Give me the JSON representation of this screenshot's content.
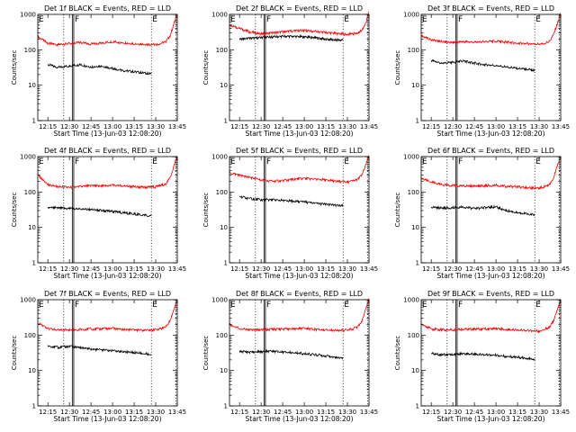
{
  "colors": {
    "events": "#000000",
    "lld": "#ff0000",
    "background": "#ffffff"
  },
  "chart_data": [
    {
      "type": "line",
      "title": "Det 1f BLACK = Events, RED = LLD",
      "xlabel": "Start Time (13-Jun-03 12:08:20)",
      "ylabel": "Counts/sec",
      "ylog": true,
      "ylim": [
        1,
        1000
      ],
      "x_ticks": [
        "12:15",
        "12:30",
        "12:45",
        "13:00",
        "13:15",
        "13:30",
        "13:45"
      ],
      "y_ticks": [
        "1",
        "10",
        "100",
        "1000"
      ],
      "dotted_markers": [
        "12:26",
        "13:27",
        "13:44"
      ],
      "solid_markers": [
        "12:32",
        "12:33"
      ],
      "flags": [
        {
          "label": "E",
          "at": "12:08"
        },
        {
          "label": "F",
          "at": "12:33"
        },
        {
          "label": "E",
          "at": "13:27"
        }
      ],
      "series": [
        {
          "name": "LLD",
          "color": "#ff0000",
          "x": [
            "12:08",
            "12:15",
            "12:22",
            "12:30",
            "12:37",
            "12:45",
            "12:52",
            "13:00",
            "13:07",
            "13:15",
            "13:22",
            "13:30",
            "13:33",
            "13:37",
            "13:40",
            "13:43",
            "13:45"
          ],
          "y": [
            240,
            150,
            140,
            150,
            160,
            145,
            155,
            170,
            160,
            150,
            145,
            140,
            150,
            170,
            250,
            600,
            1000
          ]
        },
        {
          "name": "Events",
          "color": "#000000",
          "x": [
            "12:15",
            "12:22",
            "12:30",
            "12:37",
            "12:45",
            "12:52",
            "13:00",
            "13:07",
            "13:15",
            "13:22",
            "13:27"
          ],
          "y": [
            38,
            32,
            35,
            38,
            33,
            35,
            30,
            26,
            24,
            22,
            21
          ]
        }
      ]
    },
    {
      "type": "line",
      "title": "Det 2f BLACK = Events, RED = LLD",
      "xlabel": "Start Time (13-Jun-03 12:08:20)",
      "ylabel": "Counts/sec",
      "ylog": true,
      "ylim": [
        1,
        1000
      ],
      "x_ticks": [
        "12:15",
        "12:30",
        "12:45",
        "13:00",
        "13:15",
        "13:30",
        "13:45"
      ],
      "y_ticks": [
        "1",
        "10",
        "100",
        "1000"
      ],
      "dotted_markers": [
        "12:26",
        "13:27",
        "13:44"
      ],
      "solid_markers": [
        "12:32",
        "12:33"
      ],
      "flags": [
        {
          "label": "E",
          "at": "12:08"
        },
        {
          "label": "F",
          "at": "12:33"
        },
        {
          "label": "E",
          "at": "13:27"
        }
      ],
      "series": [
        {
          "name": "LLD",
          "color": "#ff0000",
          "x": [
            "12:08",
            "12:15",
            "12:22",
            "12:30",
            "12:37",
            "12:45",
            "12:52",
            "13:00",
            "13:07",
            "13:15",
            "13:22",
            "13:30",
            "13:33",
            "13:37",
            "13:40",
            "13:43",
            "13:45"
          ],
          "y": [
            500,
            400,
            320,
            280,
            300,
            320,
            340,
            350,
            330,
            310,
            290,
            270,
            280,
            300,
            350,
            600,
            1200
          ]
        },
        {
          "name": "Events",
          "color": "#000000",
          "x": [
            "12:15",
            "12:22",
            "12:30",
            "12:37",
            "12:45",
            "12:52",
            "13:00",
            "13:07",
            "13:15",
            "13:22",
            "13:27"
          ],
          "y": [
            200,
            210,
            220,
            230,
            240,
            240,
            230,
            220,
            200,
            190,
            190
          ]
        }
      ]
    },
    {
      "type": "line",
      "title": "Det 3f BLACK = Events, RED = LLD",
      "xlabel": "Start Time (13-Jun-03 12:08:20)",
      "ylabel": "Counts/sec",
      "ylog": true,
      "ylim": [
        1,
        1000
      ],
      "x_ticks": [
        "12:15",
        "12:30",
        "12:45",
        "13:00",
        "13:15",
        "13:30",
        "13:45"
      ],
      "y_ticks": [
        "1",
        "10",
        "100",
        "1000"
      ],
      "dotted_markers": [
        "12:26",
        "13:27",
        "13:44"
      ],
      "solid_markers": [
        "12:32",
        "12:33"
      ],
      "flags": [
        {
          "label": "E",
          "at": "12:08"
        },
        {
          "label": "F",
          "at": "12:33"
        },
        {
          "label": "E",
          "at": "13:27"
        }
      ],
      "series": [
        {
          "name": "LLD",
          "color": "#ff0000",
          "x": [
            "12:08",
            "12:15",
            "12:22",
            "12:30",
            "12:37",
            "12:45",
            "12:52",
            "13:00",
            "13:07",
            "13:15",
            "13:22",
            "13:30",
            "13:33",
            "13:37",
            "13:40",
            "13:43",
            "13:45"
          ],
          "y": [
            250,
            190,
            170,
            160,
            170,
            165,
            170,
            175,
            165,
            155,
            150,
            145,
            150,
            170,
            260,
            600,
            1100
          ]
        },
        {
          "name": "Events",
          "color": "#000000",
          "x": [
            "12:15",
            "12:22",
            "12:30",
            "12:37",
            "12:45",
            "12:52",
            "13:00",
            "13:07",
            "13:15",
            "13:22",
            "13:27"
          ],
          "y": [
            50,
            42,
            44,
            48,
            42,
            38,
            36,
            33,
            30,
            28,
            26
          ]
        }
      ]
    },
    {
      "type": "line",
      "title": "Det 4f BLACK = Events, RED = LLD",
      "xlabel": "Start Time (13-Jun-03 12:08:20)",
      "ylabel": "Counts/sec",
      "ylog": true,
      "ylim": [
        1,
        1000
      ],
      "x_ticks": [
        "12:15",
        "12:30",
        "12:45",
        "13:00",
        "13:15",
        "13:30",
        "13:45"
      ],
      "y_ticks": [
        "1",
        "10",
        "100",
        "1000"
      ],
      "dotted_markers": [
        "12:26",
        "13:27",
        "13:44"
      ],
      "solid_markers": [
        "12:32",
        "12:33"
      ],
      "flags": [
        {
          "label": "E",
          "at": "12:08"
        },
        {
          "label": "F",
          "at": "12:33"
        },
        {
          "label": "E",
          "at": "13:27"
        }
      ],
      "series": [
        {
          "name": "LLD",
          "color": "#ff0000",
          "x": [
            "12:08",
            "12:15",
            "12:22",
            "12:30",
            "12:37",
            "12:45",
            "12:52",
            "13:00",
            "13:07",
            "13:15",
            "13:22",
            "13:30",
            "13:33",
            "13:37",
            "13:40",
            "13:43",
            "13:45"
          ],
          "y": [
            300,
            160,
            140,
            135,
            140,
            150,
            145,
            155,
            150,
            140,
            135,
            140,
            150,
            170,
            250,
            600,
            1000
          ]
        },
        {
          "name": "Events",
          "color": "#000000",
          "x": [
            "12:15",
            "12:22",
            "12:30",
            "12:37",
            "12:45",
            "12:52",
            "13:00",
            "13:07",
            "13:15",
            "13:22",
            "13:27"
          ],
          "y": [
            36,
            35,
            34,
            33,
            32,
            30,
            28,
            26,
            24,
            22,
            21
          ]
        }
      ]
    },
    {
      "type": "line",
      "title": "Det 5f BLACK = Events, RED = LLD",
      "xlabel": "Start Time (13-Jun-03 12:08:20)",
      "ylabel": "Counts/sec",
      "ylog": true,
      "ylim": [
        1,
        1000
      ],
      "x_ticks": [
        "12:15",
        "12:30",
        "12:45",
        "13:00",
        "13:15",
        "13:30",
        "13:45"
      ],
      "y_ticks": [
        "1",
        "10",
        "100",
        "1000"
      ],
      "dotted_markers": [
        "12:26",
        "13:27",
        "13:44"
      ],
      "solid_markers": [
        "12:32",
        "12:33"
      ],
      "flags": [
        {
          "label": "E",
          "at": "12:08"
        },
        {
          "label": "F",
          "at": "12:33"
        },
        {
          "label": "E",
          "at": "13:27"
        }
      ],
      "series": [
        {
          "name": "LLD",
          "color": "#ff0000",
          "x": [
            "12:08",
            "12:15",
            "12:22",
            "12:30",
            "12:37",
            "12:45",
            "12:52",
            "13:00",
            "13:07",
            "13:15",
            "13:22",
            "13:30",
            "13:33",
            "13:37",
            "13:40",
            "13:43",
            "13:45"
          ],
          "y": [
            350,
            300,
            260,
            220,
            200,
            210,
            230,
            240,
            230,
            220,
            200,
            190,
            200,
            230,
            300,
            600,
            1100
          ]
        },
        {
          "name": "Events",
          "color": "#000000",
          "x": [
            "12:15",
            "12:22",
            "12:30",
            "12:37",
            "12:45",
            "12:52",
            "13:00",
            "13:07",
            "13:15",
            "13:22",
            "13:27"
          ],
          "y": [
            75,
            65,
            60,
            60,
            58,
            55,
            52,
            48,
            45,
            42,
            40
          ]
        }
      ]
    },
    {
      "type": "line",
      "title": "Det 6f BLACK = Events, RED = LLD",
      "xlabel": "Start Time (13-Jun-03 12:08:20)",
      "ylabel": "Counts/sec",
      "ylog": true,
      "ylim": [
        1,
        1000
      ],
      "x_ticks": [
        "12:15",
        "12:30",
        "12:45",
        "13:00",
        "13:15",
        "13:30",
        "13:45"
      ],
      "y_ticks": [
        "1",
        "10",
        "100",
        "1000"
      ],
      "dotted_markers": [
        "12:26",
        "13:27",
        "13:44"
      ],
      "solid_markers": [
        "12:32",
        "12:33"
      ],
      "flags": [
        {
          "label": "E",
          "at": "12:08"
        },
        {
          "label": "F",
          "at": "12:33"
        },
        {
          "label": "E",
          "at": "13:27"
        }
      ],
      "series": [
        {
          "name": "LLD",
          "color": "#ff0000",
          "x": [
            "12:08",
            "12:15",
            "12:22",
            "12:30",
            "12:37",
            "12:45",
            "12:52",
            "13:00",
            "13:07",
            "13:15",
            "13:22",
            "13:30",
            "13:33",
            "13:37",
            "13:40",
            "13:43",
            "13:45"
          ],
          "y": [
            240,
            190,
            160,
            150,
            150,
            145,
            150,
            155,
            145,
            140,
            130,
            130,
            140,
            160,
            250,
            600,
            1000
          ]
        },
        {
          "name": "Events",
          "color": "#000000",
          "x": [
            "12:15",
            "12:22",
            "12:30",
            "12:37",
            "12:45",
            "12:52",
            "13:00",
            "13:07",
            "13:15",
            "13:22",
            "13:27"
          ],
          "y": [
            38,
            35,
            36,
            38,
            34,
            36,
            38,
            30,
            26,
            24,
            22
          ]
        }
      ]
    },
    {
      "type": "line",
      "title": "Det 7f BLACK = Events, RED = LLD",
      "xlabel": "Start Time (13-Jun-03 12:08:20)",
      "ylabel": "Counts/sec",
      "ylog": true,
      "ylim": [
        1,
        1000
      ],
      "x_ticks": [
        "12:15",
        "12:30",
        "12:45",
        "13:00",
        "13:15",
        "13:30",
        "13:45"
      ],
      "y_ticks": [
        "1",
        "10",
        "100",
        "1000"
      ],
      "dotted_markers": [
        "12:26",
        "13:27",
        "13:44"
      ],
      "solid_markers": [
        "12:32",
        "12:33"
      ],
      "flags": [
        {
          "label": "E",
          "at": "12:08"
        },
        {
          "label": "F",
          "at": "12:33"
        },
        {
          "label": "E",
          "at": "13:27"
        }
      ],
      "series": [
        {
          "name": "LLD",
          "color": "#ff0000",
          "x": [
            "12:08",
            "12:15",
            "12:22",
            "12:30",
            "12:37",
            "12:45",
            "12:52",
            "13:00",
            "13:07",
            "13:15",
            "13:22",
            "13:30",
            "13:33",
            "13:37",
            "13:40",
            "13:43",
            "13:45"
          ],
          "y": [
            220,
            150,
            140,
            140,
            145,
            150,
            150,
            155,
            145,
            140,
            135,
            140,
            150,
            170,
            250,
            600,
            1000
          ]
        },
        {
          "name": "Events",
          "color": "#000000",
          "x": [
            "12:15",
            "12:22",
            "12:30",
            "12:37",
            "12:45",
            "12:52",
            "13:00",
            "13:07",
            "13:15",
            "13:22",
            "13:27"
          ],
          "y": [
            50,
            45,
            48,
            45,
            40,
            38,
            36,
            34,
            32,
            30,
            28
          ]
        }
      ]
    },
    {
      "type": "line",
      "title": "Det 8f BLACK = Events, RED = LLD",
      "xlabel": "Start Time (13-Jun-03 12:08:20)",
      "ylabel": "Counts/sec",
      "ylog": true,
      "ylim": [
        1,
        1000
      ],
      "x_ticks": [
        "12:15",
        "12:30",
        "12:45",
        "13:00",
        "13:15",
        "13:30",
        "13:45"
      ],
      "y_ticks": [
        "1",
        "10",
        "100",
        "1000"
      ],
      "dotted_markers": [
        "12:26",
        "13:27",
        "13:44"
      ],
      "solid_markers": [
        "12:32",
        "12:33"
      ],
      "flags": [
        {
          "label": "E",
          "at": "12:08"
        },
        {
          "label": "F",
          "at": "12:33"
        },
        {
          "label": "E",
          "at": "13:27"
        }
      ],
      "series": [
        {
          "name": "LLD",
          "color": "#ff0000",
          "x": [
            "12:08",
            "12:15",
            "12:22",
            "12:30",
            "12:37",
            "12:45",
            "12:52",
            "13:00",
            "13:07",
            "13:15",
            "13:22",
            "13:30",
            "13:33",
            "13:37",
            "13:40",
            "13:43",
            "13:45"
          ],
          "y": [
            200,
            150,
            140,
            140,
            145,
            150,
            150,
            155,
            145,
            140,
            135,
            140,
            150,
            170,
            250,
            600,
            1100
          ]
        },
        {
          "name": "Events",
          "color": "#000000",
          "x": [
            "12:15",
            "12:22",
            "12:30",
            "12:37",
            "12:45",
            "12:52",
            "13:00",
            "13:07",
            "13:15",
            "13:22",
            "13:27"
          ],
          "y": [
            35,
            33,
            34,
            35,
            33,
            32,
            30,
            28,
            26,
            24,
            23
          ]
        }
      ]
    },
    {
      "type": "line",
      "title": "Det 9f BLACK = Events, RED = LLD",
      "xlabel": "Start Time (13-Jun-03 12:08:20)",
      "ylabel": "Counts/sec",
      "ylog": true,
      "ylim": [
        1,
        1000
      ],
      "x_ticks": [
        "12:15",
        "12:30",
        "12:45",
        "13:00",
        "13:15",
        "13:30",
        "13:45"
      ],
      "y_ticks": [
        "1",
        "10",
        "100",
        "1000"
      ],
      "dotted_markers": [
        "12:26",
        "13:27",
        "13:44"
      ],
      "solid_markers": [
        "12:32",
        "12:33"
      ],
      "flags": [
        {
          "label": "E",
          "at": "12:08"
        },
        {
          "label": "F",
          "at": "12:33"
        },
        {
          "label": "E",
          "at": "13:27"
        }
      ],
      "series": [
        {
          "name": "LLD",
          "color": "#ff0000",
          "x": [
            "12:08",
            "12:15",
            "12:22",
            "12:30",
            "12:37",
            "12:45",
            "12:52",
            "13:00",
            "13:07",
            "13:15",
            "13:22",
            "13:30",
            "13:33",
            "13:37",
            "13:40",
            "13:43",
            "13:45"
          ],
          "y": [
            210,
            150,
            140,
            140,
            145,
            150,
            150,
            155,
            145,
            140,
            135,
            130,
            140,
            170,
            250,
            600,
            1000
          ]
        },
        {
          "name": "Events",
          "color": "#000000",
          "x": [
            "12:15",
            "12:22",
            "12:30",
            "12:37",
            "12:45",
            "12:52",
            "13:00",
            "13:07",
            "13:15",
            "13:22",
            "13:27"
          ],
          "y": [
            30,
            28,
            29,
            30,
            29,
            28,
            27,
            25,
            24,
            22,
            21
          ]
        }
      ]
    }
  ]
}
